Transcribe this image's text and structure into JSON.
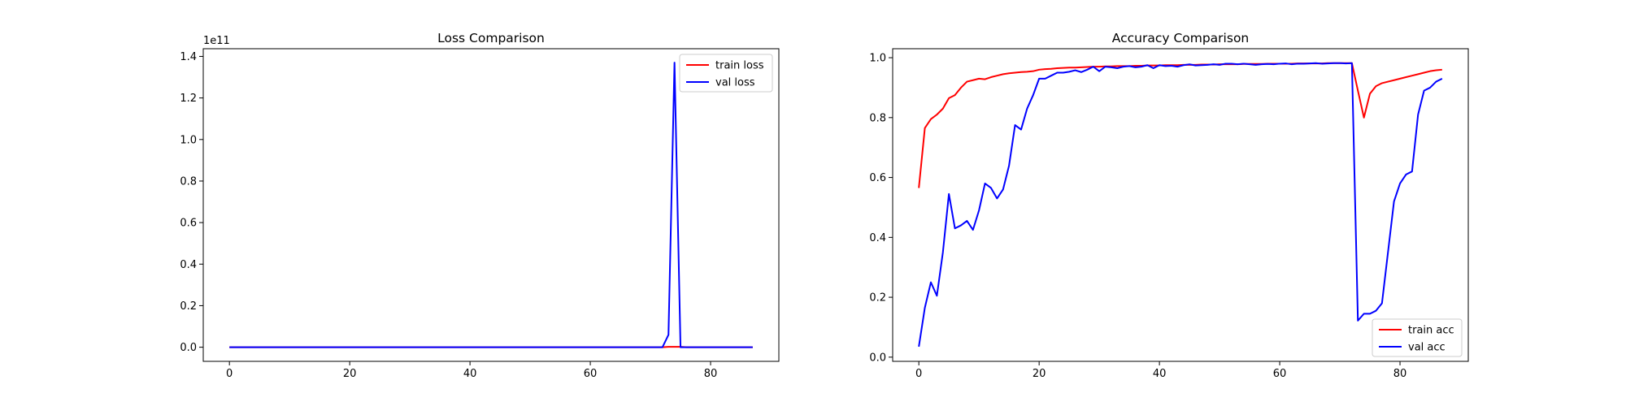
{
  "chart_data": [
    {
      "type": "line",
      "title": "Loss Comparison",
      "xlabel": "",
      "ylabel": "",
      "xlim": [
        -4.35,
        91.35
      ],
      "ylim": [
        -0.068,
        1.437
      ],
      "y_offset_text": "1e11",
      "xticks": [
        0,
        20,
        40,
        60,
        80
      ],
      "yticks": [
        0.0,
        0.2,
        0.4,
        0.6,
        0.8,
        1.0,
        1.2,
        1.4
      ],
      "ytick_labels": [
        "0.0",
        "0.2",
        "0.4",
        "0.6",
        "0.8",
        "1.0",
        "1.2",
        "1.4"
      ],
      "grid": false,
      "legend_position": "upper right",
      "x": [
        0,
        1,
        2,
        3,
        4,
        5,
        6,
        7,
        8,
        9,
        10,
        11,
        12,
        13,
        14,
        15,
        16,
        17,
        18,
        19,
        20,
        21,
        22,
        23,
        24,
        25,
        26,
        27,
        28,
        29,
        30,
        31,
        32,
        33,
        34,
        35,
        36,
        37,
        38,
        39,
        40,
        41,
        42,
        43,
        44,
        45,
        46,
        47,
        48,
        49,
        50,
        51,
        52,
        53,
        54,
        55,
        56,
        57,
        58,
        59,
        60,
        61,
        62,
        63,
        64,
        65,
        66,
        67,
        68,
        69,
        70,
        71,
        72,
        73,
        74,
        75,
        76,
        77,
        78,
        79,
        80,
        81,
        82,
        83,
        84,
        85,
        86,
        87
      ],
      "series": [
        {
          "name": "train loss",
          "color": "#ff0000",
          "values": [
            0,
            0,
            0,
            0,
            0,
            0,
            0,
            0,
            0,
            0,
            0,
            0,
            0,
            0,
            0,
            0,
            0,
            0,
            0,
            0,
            0,
            0,
            0,
            0,
            0,
            0,
            0,
            0,
            0,
            0,
            0,
            0,
            0,
            0,
            0,
            0,
            0,
            0,
            0,
            0,
            0,
            0,
            0,
            0,
            0,
            0,
            0,
            0,
            0,
            0,
            0,
            0,
            0,
            0,
            0,
            0,
            0,
            0,
            0,
            0,
            0,
            0,
            0,
            0,
            0,
            0,
            0,
            0,
            0,
            0,
            0,
            0,
            0,
            0.002,
            0.002,
            0.002,
            0,
            0,
            0,
            0,
            0,
            0,
            0,
            0,
            0,
            0,
            0,
            0
          ]
        },
        {
          "name": "val loss",
          "color": "#0000ff",
          "values": [
            0,
            0,
            0,
            0,
            0,
            0,
            0,
            0,
            0,
            0,
            0,
            0,
            0,
            0,
            0,
            0,
            0,
            0,
            0,
            0,
            0,
            0,
            0,
            0,
            0,
            0,
            0,
            0,
            0,
            0,
            0,
            0,
            0,
            0,
            0,
            0,
            0,
            0,
            0,
            0,
            0,
            0,
            0,
            0,
            0,
            0,
            0,
            0,
            0,
            0,
            0,
            0,
            0,
            0,
            0,
            0,
            0,
            0,
            0,
            0,
            0,
            0,
            0,
            0,
            0,
            0,
            0,
            0,
            0,
            0,
            0,
            0,
            0,
            0.06,
            1.37,
            0,
            0,
            0,
            0,
            0,
            0,
            0,
            0,
            0,
            0,
            0,
            0,
            0
          ]
        }
      ]
    },
    {
      "type": "line",
      "title": "Accuracy Comparison",
      "xlabel": "",
      "ylabel": "",
      "xlim": [
        -4.35,
        91.35
      ],
      "ylim": [
        -0.014,
        1.03
      ],
      "xticks": [
        0,
        20,
        40,
        60,
        80
      ],
      "yticks": [
        0.0,
        0.2,
        0.4,
        0.6,
        0.8,
        1.0
      ],
      "ytick_labels": [
        "0.0",
        "0.2",
        "0.4",
        "0.6",
        "0.8",
        "1.0"
      ],
      "grid": false,
      "legend_position": "lower right",
      "x": [
        0,
        1,
        2,
        3,
        4,
        5,
        6,
        7,
        8,
        9,
        10,
        11,
        12,
        13,
        14,
        15,
        16,
        17,
        18,
        19,
        20,
        21,
        22,
        23,
        24,
        25,
        26,
        27,
        28,
        29,
        30,
        31,
        32,
        33,
        34,
        35,
        36,
        37,
        38,
        39,
        40,
        41,
        42,
        43,
        44,
        45,
        46,
        47,
        48,
        49,
        50,
        51,
        52,
        53,
        54,
        55,
        56,
        57,
        58,
        59,
        60,
        61,
        62,
        63,
        64,
        65,
        66,
        67,
        68,
        69,
        70,
        71,
        72,
        73,
        74,
        75,
        76,
        77,
        78,
        79,
        80,
        81,
        82,
        83,
        84,
        85,
        86,
        87
      ],
      "series": [
        {
          "name": "train acc",
          "color": "#ff0000",
          "values": [
            0.565,
            0.765,
            0.795,
            0.81,
            0.83,
            0.865,
            0.875,
            0.9,
            0.92,
            0.925,
            0.93,
            0.928,
            0.935,
            0.94,
            0.945,
            0.948,
            0.95,
            0.952,
            0.953,
            0.955,
            0.96,
            0.962,
            0.963,
            0.965,
            0.966,
            0.967,
            0.967,
            0.968,
            0.969,
            0.97,
            0.97,
            0.971,
            0.971,
            0.972,
            0.972,
            0.972,
            0.973,
            0.973,
            0.974,
            0.974,
            0.974,
            0.975,
            0.975,
            0.975,
            0.976,
            0.976,
            0.976,
            0.977,
            0.977,
            0.977,
            0.978,
            0.978,
            0.978,
            0.978,
            0.979,
            0.979,
            0.979,
            0.979,
            0.98,
            0.98,
            0.98,
            0.98,
            0.98,
            0.981,
            0.981,
            0.981,
            0.981,
            0.981,
            0.982,
            0.982,
            0.982,
            0.982,
            0.982,
            0.89,
            0.8,
            0.88,
            0.905,
            0.915,
            0.92,
            0.925,
            0.93,
            0.935,
            0.94,
            0.945,
            0.95,
            0.955,
            0.958,
            0.96
          ]
        },
        {
          "name": "val acc",
          "color": "#0000ff",
          "values": [
            0.035,
            0.165,
            0.25,
            0.205,
            0.35,
            0.545,
            0.43,
            0.44,
            0.455,
            0.425,
            0.49,
            0.58,
            0.565,
            0.53,
            0.56,
            0.64,
            0.775,
            0.76,
            0.83,
            0.875,
            0.93,
            0.93,
            0.94,
            0.95,
            0.95,
            0.953,
            0.958,
            0.952,
            0.96,
            0.97,
            0.955,
            0.97,
            0.968,
            0.965,
            0.97,
            0.972,
            0.968,
            0.97,
            0.975,
            0.965,
            0.975,
            0.972,
            0.973,
            0.97,
            0.975,
            0.978,
            0.974,
            0.975,
            0.976,
            0.978,
            0.976,
            0.98,
            0.98,
            0.978,
            0.98,
            0.978,
            0.976,
            0.978,
            0.979,
            0.978,
            0.98,
            0.981,
            0.978,
            0.98,
            0.98,
            0.981,
            0.982,
            0.98,
            0.981,
            0.982,
            0.982,
            0.981,
            0.982,
            0.122,
            0.145,
            0.145,
            0.155,
            0.18,
            0.35,
            0.52,
            0.58,
            0.61,
            0.62,
            0.81,
            0.89,
            0.9,
            0.92,
            0.93
          ]
        }
      ]
    }
  ]
}
